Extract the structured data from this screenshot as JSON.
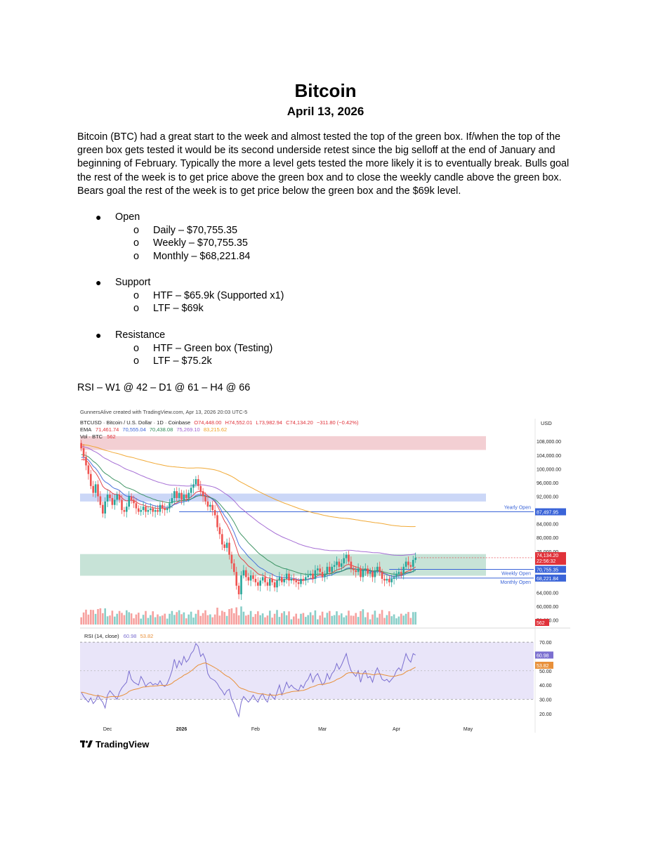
{
  "document": {
    "title": "Bitcoin",
    "date": "April 13, 2026",
    "paragraph": "Bitcoin (BTC) had a great start to the week and almost tested the top of the green box. If/when the top of the green box gets tested it would be its second underside retest since the big selloff at the end of January and beginning of February. Typically the more a level gets tested the more likely it is to eventually break. Bulls goal the rest of the week is to get price above the green box and to close the weekly candle above the green box. Bears goal the rest of the week is to get price below the green box and the $69k level.",
    "sections": [
      {
        "label": "Open",
        "items": [
          "Daily – $70,755.35",
          "Weekly – $70,755.35",
          "Monthly – $68,221.84"
        ]
      },
      {
        "label": "Support",
        "items": [
          "HTF – $65.9k (Supported x1)",
          "LTF – $69k"
        ]
      },
      {
        "label": "Resistance",
        "items": [
          "HTF – Green box (Testing)",
          "LTF – $75.2k"
        ]
      }
    ],
    "rsi_summary": "RSI – W1 @ 42 – D1 @ 61 – H4 @ 66",
    "bullet_icon": "filled-circle-bullet",
    "sub_bullet_icon": "hollow-circle-bullet"
  },
  "chart_data": {
    "type": "line",
    "header": "GunnersAlive created with TradingView.com, Apr 13, 2026 20:03 UTC-5",
    "symbol_line": "BTCUSD · Bitcoin / U.S. Dollar · 1D · Coinbase",
    "ohlc": {
      "O": "O74,448.00",
      "H": "H74,552.01",
      "L": "L73,982.94",
      "C": "C74,134.20",
      "chg": "−311.80 (−0.42%)"
    },
    "ema_label": "EMA",
    "ema_values": [
      {
        "value": "71,461.74",
        "color": "#e0323a"
      },
      {
        "value": "70,555.04",
        "color": "#3a64d8"
      },
      {
        "value": "70,438.08",
        "color": "#2e8b57"
      },
      {
        "value": "75,269.10",
        "color": "#9c5fd0"
      },
      {
        "value": "83,215.62",
        "color": "#f0a020"
      }
    ],
    "vol_label": "Vol · BTC",
    "vol_value": "562",
    "currency": "USD",
    "price_ticks": [
      "108,000.00",
      "104,000.00",
      "100,000.00",
      "96,000.00",
      "92,000.00",
      "84,000.00",
      "80,000.00",
      "76,000.00",
      "64,000.00",
      "60,000.00",
      "56,000.00"
    ],
    "price_tick_values": [
      108000,
      104000,
      100000,
      96000,
      92000,
      84000,
      80000,
      76000,
      64000,
      60000,
      56000
    ],
    "x_labels": [
      {
        "label": "Dec",
        "index": 11
      },
      {
        "label": "2026",
        "index": 42
      },
      {
        "label": "Feb",
        "index": 73
      },
      {
        "label": "Mar",
        "index": 101
      },
      {
        "label": "Apr",
        "index": 132
      },
      {
        "label": "May",
        "index": 162
      }
    ],
    "zones": [
      {
        "name": "red-resistance-zone",
        "low": 105500,
        "high": 109500,
        "color": "#e8a0a8"
      },
      {
        "name": "blue-zone",
        "low": 90500,
        "high": 92800,
        "color": "#98b0f0"
      },
      {
        "name": "green-box",
        "low": 68900,
        "high": 75200,
        "color": "#90c8b0"
      }
    ],
    "levels": [
      {
        "name": "Yearly Open",
        "value": 87497.95,
        "tag": "87,497.95",
        "color": "#3a64d8"
      },
      {
        "name": "Weekly Open",
        "value": 70755.35,
        "tag": "70,755.35",
        "color": "#3a64d8"
      },
      {
        "name": "Monthly Open",
        "value": 68221.84,
        "tag": "68,221.84",
        "color": "#3a64d8"
      }
    ],
    "last_price": {
      "value": 74134.2,
      "tag": "74,134.20",
      "countdown": "22:56:32",
      "color": "#e0323a"
    },
    "vol_tag": "562",
    "close_series": [
      106000,
      103500,
      101000,
      98500,
      95000,
      93000,
      95500,
      92000,
      89500,
      87000,
      90500,
      92500,
      91500,
      89500,
      91000,
      92500,
      91000,
      88000,
      87500,
      89000,
      92000,
      91000,
      90000,
      88500,
      87500,
      88000,
      89000,
      87500,
      88000,
      88500,
      87500,
      88000,
      87500,
      89500,
      88500,
      88000,
      88500,
      90000,
      91500,
      93500,
      91500,
      93000,
      91000,
      92500,
      91500,
      93000,
      94500,
      95500,
      97000,
      95000,
      93500,
      92000,
      90500,
      89000,
      89500,
      88000,
      86500,
      83000,
      81000,
      78000,
      77000,
      78500,
      75000,
      72500,
      70000,
      66000,
      63500,
      69000,
      70500,
      68500,
      67500,
      69000,
      68000,
      67000,
      66000,
      67500,
      68500,
      67000,
      66000,
      68000,
      67000,
      65500,
      67500,
      68500,
      67000,
      68000,
      69500,
      67500,
      68000,
      67500,
      67000,
      66500,
      68000,
      67500,
      68500,
      69000,
      69500,
      68000,
      70500,
      71000,
      70000,
      68500,
      69500,
      71500,
      70000,
      71500,
      72000,
      73000,
      71500,
      72500,
      74000,
      75000,
      73000,
      71000,
      70500,
      70000,
      71000,
      68500,
      70500,
      71000,
      69500,
      70000,
      68500,
      70500,
      71500,
      70000,
      68000,
      67500,
      68000,
      67000,
      68000,
      68500,
      69500,
      70000,
      69500,
      71500,
      73000,
      72000,
      71500,
      73500,
      74134
    ],
    "ema_lines": [
      {
        "label": "EMA 1",
        "color": "#e0323a",
        "start": 102000,
        "end": 71461.74
      },
      {
        "label": "EMA 2",
        "color": "#3a64d8",
        "start": 103000,
        "end": 70555.04
      },
      {
        "label": "EMA 3",
        "color": "#2e8b57",
        "start": 104000,
        "end": 70438.08
      },
      {
        "label": "EMA 4",
        "color": "#9c5fd0",
        "start": 106500,
        "end": 75269.1
      },
      {
        "label": "EMA 5",
        "color": "#f0a020",
        "start": 107000,
        "end": 83215.62
      }
    ],
    "rsi": {
      "label": "RSI (14, close)",
      "value": "60.98",
      "ma_value": "53.82",
      "line_color": "#7b6fd0",
      "ma_color": "#e8903a",
      "ticks": [
        "70.00",
        "50.00",
        "40.00",
        "30.00",
        "20.00"
      ],
      "tick_values": [
        70,
        50,
        40,
        30,
        20
      ],
      "upper": 70,
      "lower": 30,
      "series": [
        35,
        32,
        30,
        28,
        31,
        27,
        29,
        33,
        30,
        28,
        24,
        33,
        36,
        34,
        32,
        30,
        35,
        38,
        40,
        42,
        50,
        44,
        42,
        41,
        40,
        46,
        43,
        39,
        41,
        42,
        40,
        41,
        40,
        43,
        40,
        39,
        41,
        45,
        50,
        58,
        52,
        57,
        54,
        60,
        56,
        58,
        62,
        64,
        69,
        67,
        60,
        62,
        58,
        48,
        45,
        44,
        43,
        41,
        38,
        36,
        33,
        36,
        37,
        30,
        27,
        22,
        18,
        28,
        32,
        30,
        28,
        30,
        33,
        30,
        28,
        32,
        34,
        30,
        28,
        34,
        32,
        30,
        35,
        40,
        33,
        37,
        42,
        38,
        40,
        38,
        37,
        36,
        40,
        38,
        42,
        44,
        48,
        42,
        46,
        48,
        44,
        40,
        42,
        48,
        44,
        48,
        50,
        55,
        51,
        54,
        58,
        62,
        55,
        50,
        48,
        46,
        50,
        42,
        48,
        50,
        45,
        46,
        42,
        48,
        52,
        48,
        44,
        43,
        44,
        42,
        44,
        46,
        50,
        52,
        50,
        56,
        62,
        58,
        56,
        62,
        60.98
      ]
    }
  }
}
